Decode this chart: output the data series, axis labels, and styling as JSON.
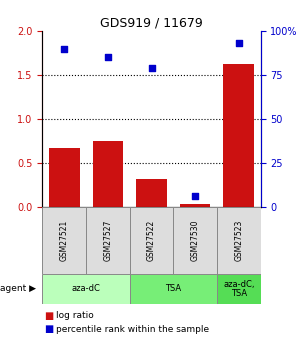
{
  "title": "GDS919 / 11679",
  "samples": [
    "GSM27521",
    "GSM27527",
    "GSM27522",
    "GSM27530",
    "GSM27523"
  ],
  "log_ratio": [
    0.67,
    0.75,
    0.32,
    0.03,
    1.63
  ],
  "percentile_rank": [
    90,
    85,
    79,
    6,
    93
  ],
  "agents": [
    {
      "label": "aza-dC",
      "start": 0,
      "end": 2,
      "color": "#bbffbb"
    },
    {
      "label": "TSA",
      "start": 2,
      "end": 4,
      "color": "#77ee77"
    },
    {
      "label": "aza-dC,\nTSA",
      "start": 4,
      "end": 5,
      "color": "#55dd55"
    }
  ],
  "bar_color": "#cc1111",
  "dot_color": "#0000cc",
  "ylim_left": [
    0,
    2
  ],
  "ylim_right": [
    0,
    100
  ],
  "yticks_left": [
    0,
    0.5,
    1.0,
    1.5,
    2.0
  ],
  "yticks_right": [
    0,
    25,
    50,
    75,
    100
  ],
  "ylabel_left_color": "#cc1111",
  "ylabel_right_color": "#0000cc",
  "background_color": "#ffffff",
  "legend_log_label": "log ratio",
  "legend_pct_label": "percentile rank within the sample",
  "sample_box_color": "#dddddd",
  "grid_color": "black",
  "grid_linestyle": "dotted",
  "grid_linewidth": 0.8,
  "bar_width": 0.7
}
